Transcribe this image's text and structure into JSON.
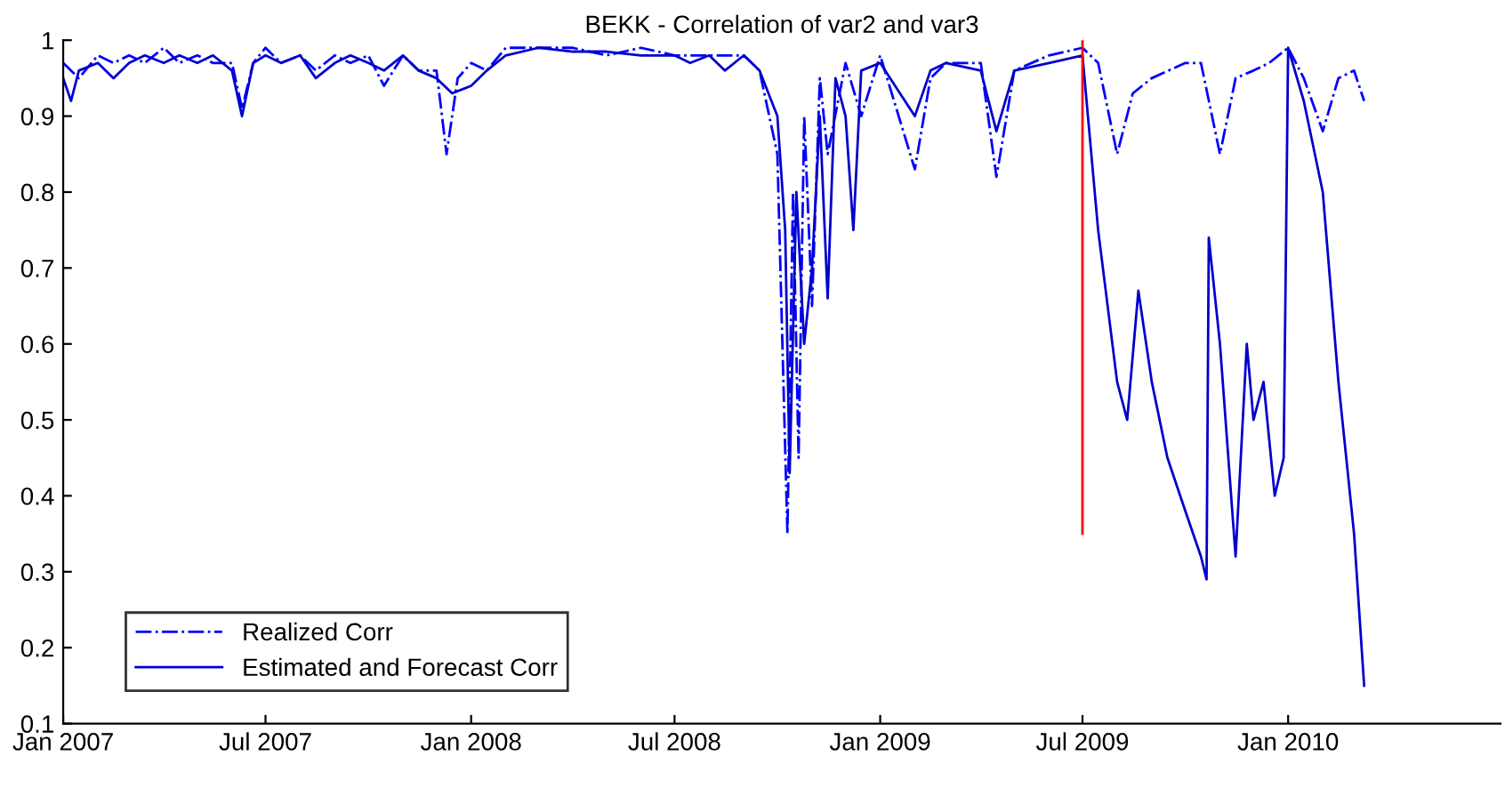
{
  "chart_data": {
    "type": "line",
    "title": "BEKK - Correlation of var2 and var3",
    "legend": "bottom left",
    "grid": false,
    "xlim": [
      "2007-01-01",
      "2010-07-10"
    ],
    "ylim": [
      0.1,
      1
    ],
    "xticks": [
      {
        "value": "2007-01-01",
        "label": "Jan 2007"
      },
      {
        "value": "2007-07-01",
        "label": "Jul 2007"
      },
      {
        "value": "2008-01-01",
        "label": "Jan 2008"
      },
      {
        "value": "2008-07-01",
        "label": "Jul 2008"
      },
      {
        "value": "2009-01-01",
        "label": "Jan 2009"
      },
      {
        "value": "2009-07-01",
        "label": "Jul 2009"
      },
      {
        "value": "2010-01-01",
        "label": "Jan 2010"
      }
    ],
    "yticks": [
      0.1,
      0.2,
      0.3,
      0.4,
      0.5,
      0.6,
      0.7,
      0.8,
      0.9,
      1
    ],
    "series": [
      {
        "name": "Realized Corr",
        "color": "#0000ff",
        "line_style": "dashdot",
        "x": [
          "2007-01-01",
          "2007-01-15",
          "2007-02-01",
          "2007-02-15",
          "2007-03-01",
          "2007-03-15",
          "2007-04-01",
          "2007-04-15",
          "2007-05-01",
          "2007-05-15",
          "2007-06-01",
          "2007-06-10",
          "2007-06-20",
          "2007-07-01",
          "2007-07-15",
          "2007-08-01",
          "2007-08-15",
          "2007-09-01",
          "2007-09-15",
          "2007-10-01",
          "2007-10-15",
          "2007-11-01",
          "2007-11-15",
          "2007-12-01",
          "2007-12-10",
          "2007-12-20",
          "2008-01-01",
          "2008-01-15",
          "2008-02-01",
          "2008-03-01",
          "2008-04-01",
          "2008-05-01",
          "2008-06-01",
          "2008-07-01",
          "2008-08-01",
          "2008-09-01",
          "2008-09-15",
          "2008-10-01",
          "2008-10-10",
          "2008-10-15",
          "2008-10-20",
          "2008-10-25",
          "2008-11-01",
          "2008-11-08",
          "2008-11-15",
          "2008-12-01",
          "2008-12-15",
          "2009-01-01",
          "2009-02-01",
          "2009-02-15",
          "2009-03-01",
          "2009-04-01",
          "2009-04-15",
          "2009-05-01",
          "2009-06-01",
          "2009-07-01",
          "2009-07-15",
          "2009-08-01",
          "2009-08-15",
          "2009-09-01",
          "2009-10-01",
          "2009-10-15",
          "2009-11-01",
          "2009-11-15",
          "2009-12-01",
          "2009-12-15",
          "2010-01-01",
          "2010-01-15",
          "2010-02-01",
          "2010-02-15",
          "2010-03-01",
          "2010-03-10"
        ],
        "values": [
          0.97,
          0.95,
          0.98,
          0.97,
          0.98,
          0.97,
          0.99,
          0.97,
          0.98,
          0.97,
          0.97,
          0.91,
          0.97,
          0.99,
          0.97,
          0.98,
          0.96,
          0.98,
          0.97,
          0.98,
          0.94,
          0.98,
          0.96,
          0.96,
          0.85,
          0.95,
          0.97,
          0.96,
          0.99,
          0.99,
          0.99,
          0.98,
          0.99,
          0.98,
          0.98,
          0.98,
          0.96,
          0.85,
          0.35,
          0.8,
          0.45,
          0.9,
          0.65,
          0.95,
          0.85,
          0.97,
          0.9,
          0.98,
          0.83,
          0.95,
          0.97,
          0.97,
          0.82,
          0.96,
          0.98,
          0.99,
          0.97,
          0.85,
          0.93,
          0.95,
          0.97,
          0.97,
          0.85,
          0.95,
          0.96,
          0.97,
          0.99,
          0.95,
          0.88,
          0.95,
          0.96,
          0.92
        ]
      },
      {
        "name": "Estimated and Forecast Corr",
        "color": "#0000cc",
        "line_style": "solid",
        "x": [
          "2007-01-01",
          "2007-01-08",
          "2007-01-15",
          "2007-02-01",
          "2007-02-15",
          "2007-03-01",
          "2007-03-15",
          "2007-04-01",
          "2007-04-15",
          "2007-05-01",
          "2007-05-15",
          "2007-06-01",
          "2007-06-10",
          "2007-06-20",
          "2007-07-01",
          "2007-07-15",
          "2007-08-01",
          "2007-08-15",
          "2007-09-01",
          "2007-09-15",
          "2007-10-01",
          "2007-10-15",
          "2007-11-01",
          "2007-11-15",
          "2007-12-01",
          "2007-12-15",
          "2008-01-01",
          "2008-01-15",
          "2008-02-01",
          "2008-03-01",
          "2008-04-01",
          "2008-05-01",
          "2008-06-01",
          "2008-07-01",
          "2008-07-15",
          "2008-08-01",
          "2008-08-15",
          "2008-09-01",
          "2008-09-15",
          "2008-10-01",
          "2008-10-08",
          "2008-10-12",
          "2008-10-18",
          "2008-10-25",
          "2008-11-01",
          "2008-11-08",
          "2008-11-15",
          "2008-11-22",
          "2008-12-01",
          "2008-12-08",
          "2008-12-15",
          "2009-01-01",
          "2009-02-01",
          "2009-02-15",
          "2009-03-01",
          "2009-04-01",
          "2009-04-15",
          "2009-05-01",
          "2009-06-01",
          "2009-07-01",
          "2009-07-15",
          "2009-08-01",
          "2009-08-10",
          "2009-08-20",
          "2009-09-01",
          "2009-09-15",
          "2009-10-01",
          "2009-10-15",
          "2009-10-20",
          "2009-10-22",
          "2009-11-01",
          "2009-11-15",
          "2009-11-25",
          "2009-12-01",
          "2009-12-10",
          "2009-12-20",
          "2009-12-28",
          "2010-01-01",
          "2010-01-15",
          "2010-02-01",
          "2010-02-15",
          "2010-03-01",
          "2010-03-10"
        ],
        "values": [
          0.95,
          0.92,
          0.96,
          0.97,
          0.95,
          0.97,
          0.98,
          0.97,
          0.98,
          0.97,
          0.98,
          0.96,
          0.9,
          0.97,
          0.98,
          0.97,
          0.98,
          0.95,
          0.97,
          0.98,
          0.97,
          0.96,
          0.98,
          0.96,
          0.95,
          0.93,
          0.94,
          0.96,
          0.98,
          0.99,
          0.985,
          0.985,
          0.98,
          0.98,
          0.97,
          0.98,
          0.96,
          0.98,
          0.96,
          0.9,
          0.75,
          0.43,
          0.8,
          0.6,
          0.7,
          0.9,
          0.66,
          0.95,
          0.9,
          0.75,
          0.96,
          0.97,
          0.9,
          0.96,
          0.97,
          0.96,
          0.88,
          0.96,
          0.97,
          0.98,
          0.75,
          0.55,
          0.5,
          0.67,
          0.55,
          0.45,
          0.38,
          0.32,
          0.29,
          0.74,
          0.6,
          0.32,
          0.6,
          0.5,
          0.55,
          0.4,
          0.45,
          0.99,
          0.92,
          0.8,
          0.55,
          0.35,
          0.15
        ]
      },
      {
        "color": "#ff0000",
        "line_style": "solid",
        "x": [
          "2009-07-01",
          "2009-07-01"
        ],
        "values": [
          0.35,
          1
        ]
      }
    ]
  }
}
